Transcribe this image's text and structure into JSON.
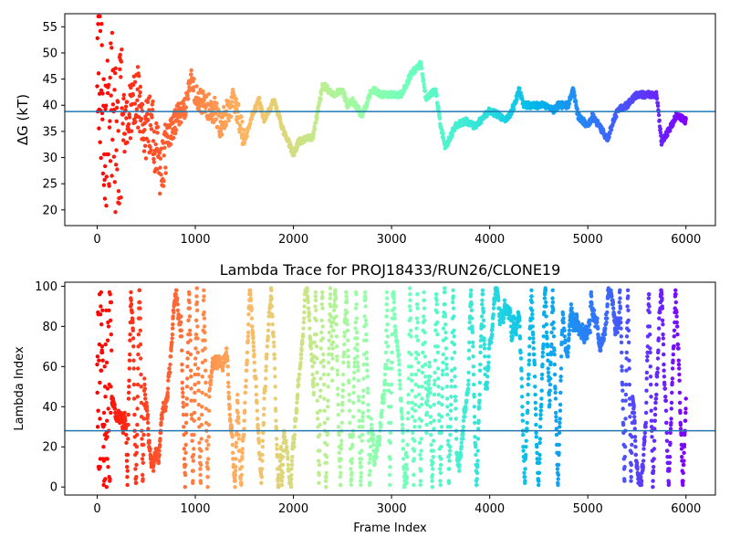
{
  "chart_data": [
    {
      "type": "scatter",
      "title": "",
      "xlabel": "",
      "ylabel": "ΔG (kT)",
      "xlim": [
        -330,
        6300
      ],
      "ylim": [
        17,
        57.5
      ],
      "xticks": [
        0,
        1000,
        2000,
        3000,
        4000,
        5000,
        6000
      ],
      "yticks": [
        20,
        25,
        30,
        35,
        40,
        45,
        50,
        55
      ],
      "hline": 38.8,
      "hline_color": "#1f77b4",
      "colormap": "rainbow (red at frame 0 → violet at frame 6000)",
      "profile": [
        [
          0,
          40
        ],
        [
          20,
          48
        ],
        [
          60,
          38
        ],
        [
          100,
          35
        ],
        [
          150,
          40
        ],
        [
          200,
          32
        ],
        [
          250,
          38
        ],
        [
          300,
          35
        ],
        [
          350,
          40
        ],
        [
          400,
          43
        ],
        [
          450,
          38
        ],
        [
          500,
          35
        ],
        [
          550,
          37
        ],
        [
          600,
          32
        ],
        [
          650,
          28
        ],
        [
          700,
          33
        ],
        [
          800,
          37
        ],
        [
          900,
          40
        ],
        [
          950,
          45
        ],
        [
          1000,
          42
        ],
        [
          1100,
          40
        ],
        [
          1200,
          39
        ],
        [
          1250,
          36
        ],
        [
          1300,
          38
        ],
        [
          1400,
          41
        ],
        [
          1450,
          37
        ],
        [
          1500,
          33
        ],
        [
          1600,
          39
        ],
        [
          1650,
          41
        ],
        [
          1700,
          37
        ],
        [
          1800,
          41
        ],
        [
          1850,
          38
        ],
        [
          1900,
          35
        ],
        [
          1950,
          33
        ],
        [
          2000,
          30.5
        ],
        [
          2050,
          33
        ],
        [
          2200,
          34
        ],
        [
          2300,
          44
        ],
        [
          2400,
          42
        ],
        [
          2500,
          43
        ],
        [
          2550,
          40
        ],
        [
          2600,
          41
        ],
        [
          2700,
          38
        ],
        [
          2800,
          43
        ],
        [
          2900,
          42
        ],
        [
          3100,
          42
        ],
        [
          3200,
          46
        ],
        [
          3300,
          48
        ],
        [
          3350,
          41
        ],
        [
          3450,
          43
        ],
        [
          3500,
          36
        ],
        [
          3550,
          32
        ],
        [
          3650,
          36
        ],
        [
          3750,
          37
        ],
        [
          3850,
          36
        ],
        [
          3900,
          37
        ],
        [
          4000,
          39
        ],
        [
          4100,
          38
        ],
        [
          4150,
          37
        ],
        [
          4200,
          38
        ],
        [
          4250,
          40
        ],
        [
          4300,
          43
        ],
        [
          4350,
          40
        ],
        [
          4600,
          40
        ],
        [
          4650,
          39
        ],
        [
          4700,
          40
        ],
        [
          4800,
          40
        ],
        [
          4850,
          43
        ],
        [
          4900,
          38
        ],
        [
          5000,
          36
        ],
        [
          5050,
          38
        ],
        [
          5150,
          35
        ],
        [
          5200,
          33.5
        ],
        [
          5300,
          39
        ],
        [
          5400,
          40
        ],
        [
          5450,
          41
        ],
        [
          5500,
          42
        ],
        [
          5700,
          42
        ],
        [
          5750,
          33
        ],
        [
          5850,
          36
        ],
        [
          5900,
          38
        ],
        [
          6000,
          37
        ]
      ]
    },
    {
      "type": "scatter",
      "title": "Lambda Trace for PROJ18433/RUN26/CLONE19",
      "xlabel": "Frame Index",
      "ylabel": "Lambda Index",
      "xlim": [
        -330,
        6300
      ],
      "ylim": [
        -4,
        102
      ],
      "xticks": [
        0,
        1000,
        2000,
        3000,
        4000,
        5000,
        6000
      ],
      "yticks": [
        0,
        20,
        40,
        60,
        80,
        100
      ],
      "hline": 28,
      "hline_color": "#1f77b4",
      "colormap": "rainbow (red at frame 0 → violet at frame 6000)",
      "lambda_range": [
        0,
        99
      ],
      "frame_range": [
        0,
        6000
      ]
    }
  ]
}
